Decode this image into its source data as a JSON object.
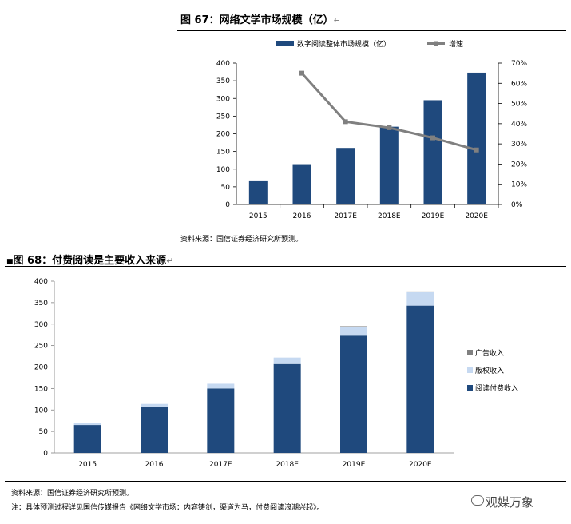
{
  "figure67": {
    "title": "图 67：网络文学市场规模（亿）",
    "source": "资料来源：国信证券经济研究所预测。",
    "chart_data": {
      "type": "bar+line",
      "categories": [
        "2015",
        "2016",
        "2017E",
        "2018E",
        "2019E",
        "2020E"
      ],
      "series": [
        {
          "name": "数字阅读整体市场规模（亿）",
          "type": "bar",
          "axis": "left",
          "values": [
            68,
            114,
            160,
            220,
            295,
            373
          ]
        },
        {
          "name": "增速",
          "type": "line",
          "axis": "right",
          "values": [
            null,
            65,
            41,
            38,
            33,
            27
          ]
        }
      ],
      "y_left": {
        "min": 0,
        "max": 400,
        "ticks": [
          "0",
          "50",
          "100",
          "150",
          "200",
          "250",
          "300",
          "350",
          "400"
        ]
      },
      "y_right": {
        "min": 0,
        "max": 70,
        "ticks": [
          "0%",
          "10%",
          "20%",
          "30%",
          "40%",
          "50%",
          "60%",
          "70%"
        ]
      },
      "colors": {
        "bar": "#1f497d",
        "line": "#808080"
      }
    }
  },
  "figure68": {
    "title": "图 68：付费阅读是主要收入来源",
    "source": "资料来源：国信证券经济研究所预测。",
    "note": "注：具体预测过程详见国信传媒报告《网络文学市场：内容铸剑，渠道为马，付费阅读浪潮兴起》。",
    "chart_data": {
      "type": "stacked-bar",
      "categories": [
        "2015",
        "2016",
        "2017E",
        "2018E",
        "2019E",
        "2020E"
      ],
      "series": [
        {
          "name": "阅读付费收入",
          "values": [
            65,
            108,
            150,
            207,
            273,
            343
          ],
          "color": "#1f497d"
        },
        {
          "name": "版权收入",
          "values": [
            5,
            6,
            11,
            15,
            21,
            31
          ],
          "color": "#c6d9f1"
        },
        {
          "name": "广告收入",
          "values": [
            0,
            0,
            0,
            0,
            1,
            2
          ],
          "color": "#808080"
        }
      ],
      "legend_order": [
        "广告收入",
        "版权收入",
        "阅读付费收入"
      ],
      "y": {
        "min": 0,
        "max": 400,
        "ticks": [
          "0",
          "50",
          "100",
          "150",
          "200",
          "250",
          "300",
          "350",
          "400"
        ]
      }
    }
  },
  "watermark": "观媒万象"
}
